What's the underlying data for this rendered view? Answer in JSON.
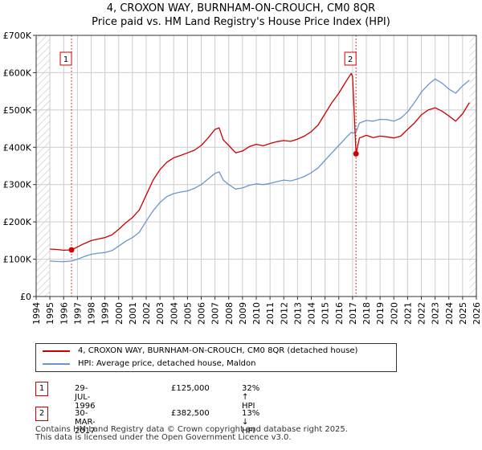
{
  "title_line1": "4, CROXON WAY, BURNHAM-ON-CROUCH, CM0 8QR",
  "title_line2": "Price paid vs. HM Land Registry's House Price Index (HPI)",
  "colors": {
    "property": "#cc0000",
    "hpi": "#6a96cc",
    "marker_line": "#cc0000",
    "hatch": "#cccccc",
    "grid": "#cccccc"
  },
  "chart_data": {
    "type": "line",
    "xlabel": "",
    "ylabel": "",
    "xlim": [
      1994,
      2026
    ],
    "ylim": [
      0,
      700000
    ],
    "y_ticks": [
      0,
      100000,
      200000,
      300000,
      400000,
      500000,
      600000,
      700000
    ],
    "y_tick_labels": [
      "£0",
      "£100K",
      "£200K",
      "£300K",
      "£400K",
      "£500K",
      "£600K",
      "£700K"
    ],
    "x_ticks": [
      1994,
      1995,
      1996,
      1997,
      1998,
      1999,
      2000,
      2001,
      2002,
      2003,
      2004,
      2005,
      2006,
      2007,
      2008,
      2009,
      2010,
      2011,
      2012,
      2013,
      2014,
      2015,
      2016,
      2017,
      2018,
      2019,
      2020,
      2021,
      2022,
      2023,
      2024,
      2025,
      2026
    ],
    "data_start_year": 1995,
    "data_end_year": 2025.5,
    "series": [
      {
        "name": "4, CROXON WAY, BURNHAM-ON-CROUCH, CM0 8QR (detached house)",
        "color": "#cc0000",
        "x": [
          1995,
          1995.5,
          1996,
          1996.57,
          1997,
          1997.5,
          1998,
          1998.5,
          1999,
          1999.5,
          2000,
          2000.5,
          2001,
          2001.5,
          2002,
          2002.5,
          2003,
          2003.5,
          2004,
          2004.5,
          2005,
          2005.5,
          2006,
          2006.5,
          2007,
          2007.3,
          2007.6,
          2008,
          2008.5,
          2009,
          2009.5,
          2010,
          2010.5,
          2011,
          2011.5,
          2012,
          2012.5,
          2013,
          2013.5,
          2014,
          2014.5,
          2015,
          2015.5,
          2016,
          2016.5,
          2016.9,
          2017.0,
          2017.25,
          2017.5,
          2018,
          2018.5,
          2019,
          2019.5,
          2020,
          2020.5,
          2021,
          2021.5,
          2022,
          2022.5,
          2023,
          2023.5,
          2024,
          2024.5,
          2025,
          2025.5
        ],
        "values": [
          127000,
          126000,
          124000,
          125000,
          133000,
          142000,
          150000,
          154000,
          158000,
          165000,
          180000,
          197000,
          212000,
          232000,
          272000,
          312000,
          340000,
          360000,
          372000,
          378000,
          385000,
          392000,
          405000,
          425000,
          448000,
          452000,
          420000,
          405000,
          385000,
          390000,
          402000,
          408000,
          404000,
          410000,
          415000,
          418000,
          416000,
          422000,
          430000,
          442000,
          460000,
          490000,
          520000,
          545000,
          575000,
          598000,
          590000,
          382500,
          425000,
          432000,
          426000,
          430000,
          428000,
          425000,
          430000,
          448000,
          465000,
          487000,
          500000,
          506000,
          497000,
          484000,
          470000,
          490000,
          520000
        ]
      },
      {
        "name": "HPI: Average price, detached house, Maldon",
        "color": "#6a96cc",
        "x": [
          1995,
          1995.5,
          1996,
          1996.57,
          1997,
          1997.5,
          1998,
          1998.5,
          1999,
          1999.5,
          2000,
          2000.5,
          2001,
          2001.5,
          2002,
          2002.5,
          2003,
          2003.5,
          2004,
          2004.5,
          2005,
          2005.5,
          2006,
          2006.5,
          2007,
          2007.3,
          2007.6,
          2008,
          2008.5,
          2009,
          2009.5,
          2010,
          2010.5,
          2011,
          2011.5,
          2012,
          2012.5,
          2013,
          2013.5,
          2014,
          2014.5,
          2015,
          2015.5,
          2016,
          2016.5,
          2016.9,
          2017.0,
          2017.25,
          2017.5,
          2018,
          2018.5,
          2019,
          2019.5,
          2020,
          2020.5,
          2021,
          2021.5,
          2022,
          2022.5,
          2023,
          2023.5,
          2024,
          2024.5,
          2025,
          2025.5
        ],
        "values": [
          95000,
          94000,
          93500,
          95000,
          100000,
          107000,
          113000,
          116000,
          118000,
          123000,
          135000,
          148000,
          158000,
          172000,
          202000,
          230000,
          252000,
          268000,
          276000,
          280000,
          283000,
          290000,
          300000,
          315000,
          330000,
          334000,
          312000,
          300000,
          288000,
          291000,
          298000,
          302000,
          300000,
          303000,
          308000,
          312000,
          310000,
          315000,
          322000,
          332000,
          345000,
          365000,
          385000,
          405000,
          425000,
          440000,
          438000,
          440000,
          465000,
          472000,
          470000,
          475000,
          474000,
          470000,
          478000,
          495000,
          520000,
          548000,
          568000,
          583000,
          572000,
          556000,
          545000,
          565000,
          580000
        ]
      }
    ],
    "sales": [
      {
        "label": "1",
        "x": 1996.57,
        "price": 125000
      },
      {
        "label": "2",
        "x": 2017.25,
        "price": 382500
      }
    ]
  },
  "legend": {
    "property_label": "4, CROXON WAY, BURNHAM-ON-CROUCH, CM0 8QR (detached house)",
    "hpi_label": "HPI: Average price, detached house, Maldon"
  },
  "sales_table": [
    {
      "num": "1",
      "date": "29-JUL-1996",
      "price": "£125,000",
      "hpi": "32% ↑ HPI"
    },
    {
      "num": "2",
      "date": "30-MAR-2017",
      "price": "£382,500",
      "hpi": "13% ↓ HPI"
    }
  ],
  "footer_line1": "Contains HM Land Registry data © Crown copyright and database right 2025.",
  "footer_line2": "This data is licensed under the Open Government Licence v3.0."
}
